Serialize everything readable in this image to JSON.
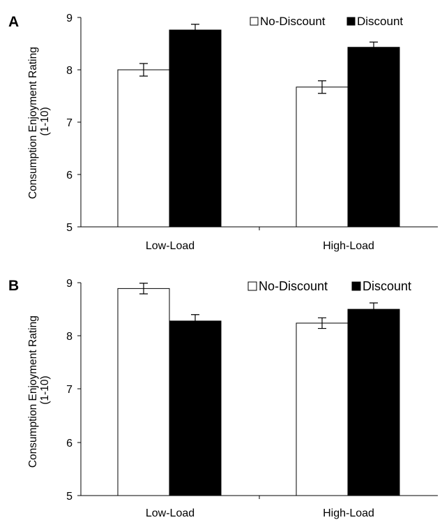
{
  "chart_data": [
    {
      "panel_label": "A",
      "type": "bar",
      "categories": [
        "Low-Load",
        "High-Load"
      ],
      "series": [
        {
          "name": "No-Discount",
          "values": [
            8.0,
            7.67
          ],
          "errors": [
            0.12,
            0.12
          ],
          "color": "#ffffff"
        },
        {
          "name": "Discount",
          "values": [
            8.76,
            8.43
          ],
          "errors": [
            0.11,
            0.1
          ],
          "color": "#000000"
        }
      ],
      "ylabel_line1": "Consumption Enjoyment Rating",
      "ylabel_line2": "(1-10)",
      "ylim": [
        5,
        9
      ],
      "yticks": [
        "5",
        "6",
        "7",
        "8",
        "9"
      ],
      "legend": "top-right",
      "grid": false
    },
    {
      "panel_label": "B",
      "type": "bar",
      "categories": [
        "Low-Load",
        "High-Load"
      ],
      "series": [
        {
          "name": "No-Discount",
          "values": [
            8.89,
            8.24
          ],
          "errors": [
            0.1,
            0.1
          ],
          "color": "#ffffff"
        },
        {
          "name": "Discount",
          "values": [
            8.28,
            8.5
          ],
          "errors": [
            0.12,
            0.12
          ],
          "color": "#000000"
        }
      ],
      "ylabel_line1": "Consumption Enjoyment Rating",
      "ylabel_line2": "(1-10)",
      "ylim": [
        5,
        9
      ],
      "yticks": [
        "5",
        "6",
        "7",
        "8",
        "9"
      ],
      "legend": "top-right",
      "grid": false
    }
  ]
}
